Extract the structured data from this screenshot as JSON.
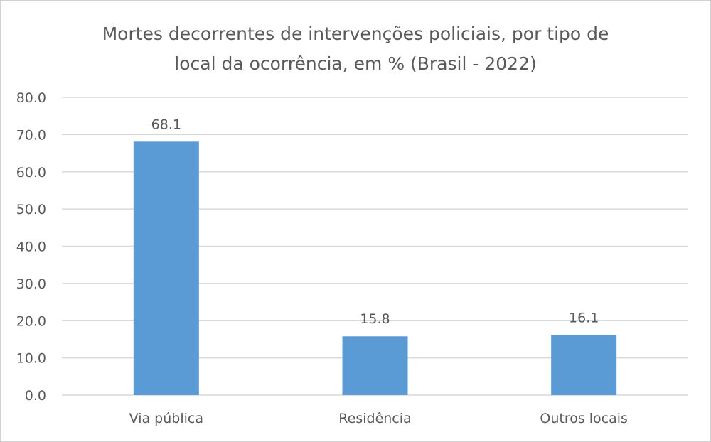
{
  "chart_data": {
    "type": "bar",
    "title_lines": [
      "Mortes decorrentes de intervenções policiais, por tipo de",
      "local da ocorrência, em % (Brasil - 2022)"
    ],
    "categories": [
      "Via pública",
      "Residência",
      "Outros locais"
    ],
    "values": [
      68.1,
      15.8,
      16.1
    ],
    "value_labels": [
      "68.1",
      "15.8",
      "16.1"
    ],
    "y_ticks": [
      "0.0",
      "10.0",
      "20.0",
      "30.0",
      "40.0",
      "50.0",
      "60.0",
      "70.0",
      "80.0"
    ],
    "xlabel": "",
    "ylabel": "",
    "ylim": [
      0,
      80
    ],
    "grid": true,
    "legend": "none",
    "bar_color": "#5B9BD5"
  }
}
